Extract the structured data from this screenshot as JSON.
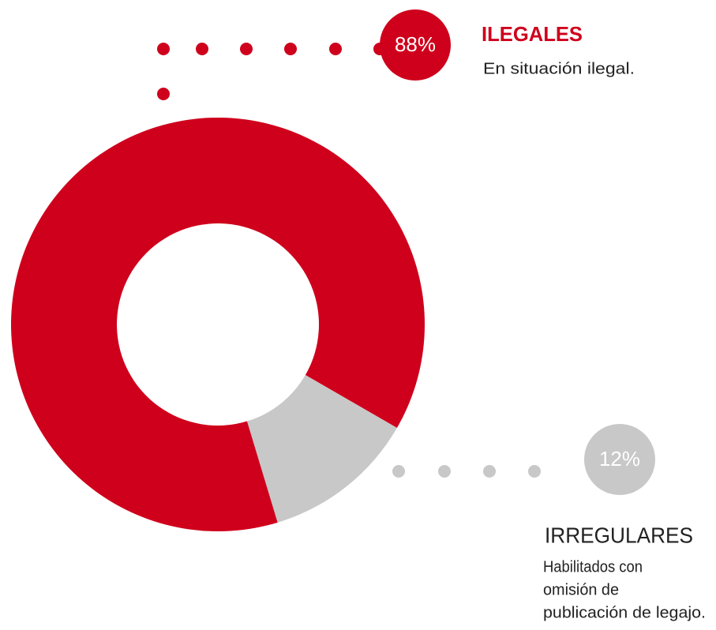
{
  "chart_data": {
    "type": "donut",
    "categories": [
      "ILEGALES",
      "IRREGULARES"
    ],
    "values": [
      88,
      12
    ],
    "value_labels": [
      "88%",
      "12%"
    ],
    "descriptions": [
      [
        "En situación ilegal."
      ],
      [
        "Habilitados con",
        "omisión de",
        "publicación de legajo."
      ]
    ],
    "colors": [
      "#cf001c",
      "#c8c8c8"
    ]
  }
}
